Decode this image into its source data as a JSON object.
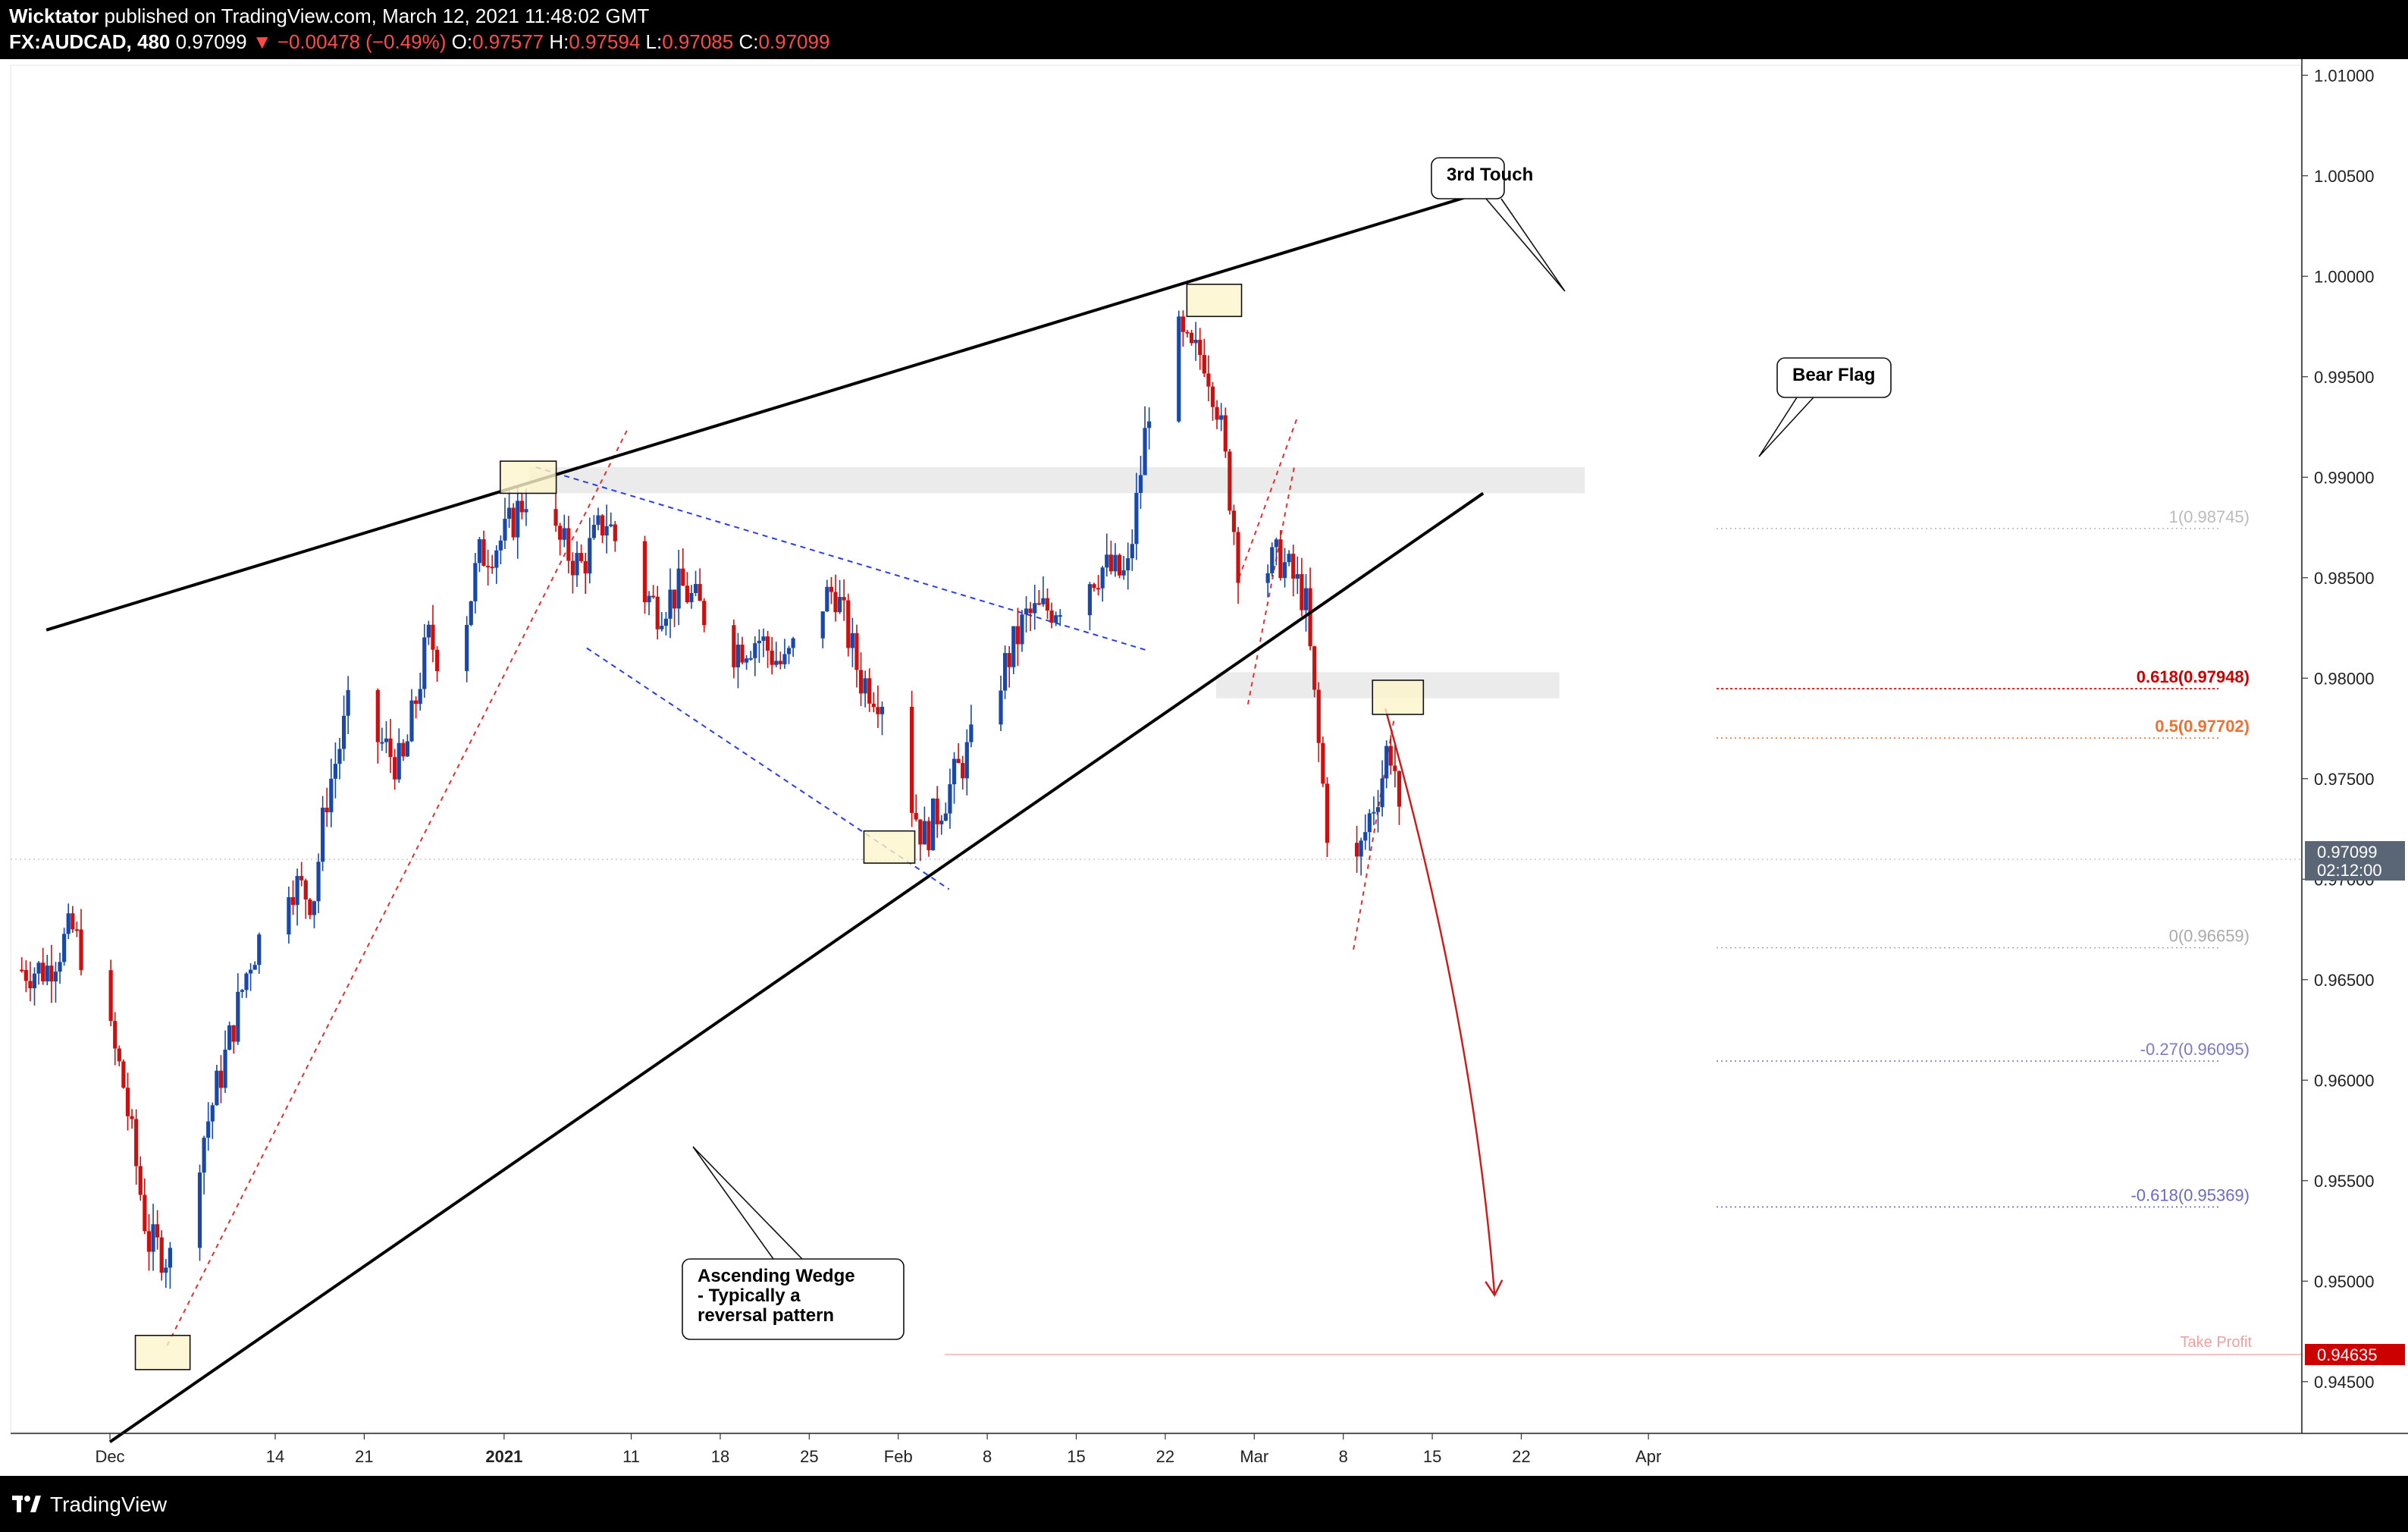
{
  "header": {
    "author": "Wicktator",
    "published": "published on TradingView.com, March 12, 2021 11:48:02 GMT",
    "symbol": "FX:AUDCAD, 480",
    "last": "0.97099",
    "change": "▼ −0.00478 (−0.49%)",
    "o_label": "O:",
    "o_value": "0.97577",
    "h_label": "H:",
    "h_value": "0.97594",
    "l_label": "L:",
    "l_value": "0.97085",
    "c_label": "C:",
    "c_value": "0.97099"
  },
  "footer": {
    "brand": "TradingView"
  },
  "colors": {
    "up": "#1848a8",
    "down": "#cc1010",
    "price_tag": "#cc0000",
    "pane_bg": "#ffffff",
    "frame": "#000000"
  },
  "chart_data": {
    "type": "candlestick",
    "symbol": "FX:AUDCAD",
    "interval": "480",
    "ylim": [
      0.9425,
      1.0105
    ],
    "y_ticks": [
      "0.94500",
      "0.95000",
      "0.95500",
      "0.96000",
      "0.96500",
      "0.97000",
      "0.97500",
      "0.98000",
      "0.98500",
      "0.99000",
      "0.99500",
      "1.00000",
      "1.00500",
      "1.01000"
    ],
    "x_ticks": [
      {
        "label": "Dec",
        "day": 0,
        "bold": false
      },
      {
        "label": "14",
        "day": 13,
        "bold": false
      },
      {
        "label": "21",
        "day": 20,
        "bold": false
      },
      {
        "label": "2021",
        "day": 31,
        "bold": true
      },
      {
        "label": "11",
        "day": 41,
        "bold": false
      },
      {
        "label": "18",
        "day": 48,
        "bold": false
      },
      {
        "label": "25",
        "day": 55,
        "bold": false
      },
      {
        "label": "Feb",
        "day": 62,
        "bold": false
      },
      {
        "label": "8",
        "day": 69,
        "bold": false
      },
      {
        "label": "15",
        "day": 76,
        "bold": false
      },
      {
        "label": "22",
        "day": 83,
        "bold": false
      },
      {
        "label": "Mar",
        "day": 90,
        "bold": false
      },
      {
        "label": "8",
        "day": 97,
        "bold": false
      },
      {
        "label": "15",
        "day": 104,
        "bold": false
      },
      {
        "label": "22",
        "day": 111,
        "bold": false
      },
      {
        "label": "Apr",
        "day": 121,
        "bold": false
      }
    ],
    "anchors": [
      [
        -5,
        0.9655
      ],
      [
        -3,
        0.9675
      ],
      [
        -1,
        0.9645
      ],
      [
        1,
        0.96
      ],
      [
        2,
        0.956
      ],
      [
        3,
        0.952
      ],
      [
        5,
        0.951
      ],
      [
        6,
        0.954
      ],
      [
        9,
        0.961
      ],
      [
        11,
        0.966
      ],
      [
        14,
        0.97
      ],
      [
        16,
        0.969
      ],
      [
        17,
        0.974
      ],
      [
        19,
        0.979
      ],
      [
        21,
        0.977
      ],
      [
        23,
        0.9755
      ],
      [
        25,
        0.982
      ],
      [
        27,
        0.98
      ],
      [
        29,
        0.986
      ],
      [
        31,
        0.987
      ],
      [
        33,
        0.9895
      ],
      [
        35,
        0.987
      ],
      [
        37,
        0.9855
      ],
      [
        39,
        0.988
      ],
      [
        41,
        0.985
      ],
      [
        43,
        0.9835
      ],
      [
        45,
        0.9845
      ],
      [
        47,
        0.983
      ],
      [
        49,
        0.9815
      ],
      [
        51,
        0.982
      ],
      [
        53,
        0.9805
      ],
      [
        55,
        0.983
      ],
      [
        57,
        0.9845
      ],
      [
        59,
        0.98
      ],
      [
        61,
        0.979
      ],
      [
        62,
        0.976
      ],
      [
        63,
        0.974
      ],
      [
        64,
        0.972
      ],
      [
        66,
        0.9745
      ],
      [
        68,
        0.977
      ],
      [
        70,
        0.98
      ],
      [
        72,
        0.983
      ],
      [
        74,
        0.9835
      ],
      [
        76,
        0.9845
      ],
      [
        78,
        0.9855
      ],
      [
        80,
        0.985
      ],
      [
        81,
        0.99
      ],
      [
        82,
        0.995
      ],
      [
        83,
        0.9975
      ],
      [
        84,
        0.997
      ],
      [
        85,
        0.996
      ],
      [
        86,
        0.9962
      ],
      [
        87,
        0.994
      ],
      [
        88,
        0.9895
      ],
      [
        89,
        0.9845
      ],
      [
        90,
        0.982
      ],
      [
        91,
        0.9855
      ],
      [
        92,
        0.986
      ],
      [
        93,
        0.985
      ],
      [
        94,
        0.984
      ],
      [
        95,
        0.977
      ],
      [
        96,
        0.971
      ],
      [
        97,
        0.9685
      ],
      [
        98,
        0.9705
      ],
      [
        99,
        0.973
      ],
      [
        100,
        0.975
      ],
      [
        100.5,
        0.9767
      ],
      [
        101,
        0.976
      ],
      [
        101.6,
        0.97099
      ]
    ],
    "last_price": {
      "value": 0.97099,
      "label": "0.97099",
      "countdown": "02:12:00"
    },
    "take_profit": {
      "value": 0.94635,
      "label": "Take Profit",
      "price": "0.94635"
    },
    "fibonacci": [
      {
        "ratio": "1",
        "value": 0.98745,
        "label": "1(0.98745)",
        "color": "#bbbbbb"
      },
      {
        "ratio": "0.618",
        "value": 0.97948,
        "label": "0.618(0.97948)",
        "color": "#cc0000"
      },
      {
        "ratio": "0.5",
        "value": 0.97702,
        "label": "0.5(0.97702)",
        "color": "#f07030"
      },
      {
        "ratio": "0",
        "value": 0.96659,
        "label": "0(0.96659)",
        "color": "#aaaaaa"
      },
      {
        "ratio": "-0.27",
        "value": 0.96095,
        "label": "-0.27(0.96095)",
        "color": "#7a7ac8"
      },
      {
        "ratio": "-0.618",
        "value": 0.95369,
        "label": "-0.618(0.95369)",
        "color": "#6a6ac0"
      }
    ],
    "annotations": {
      "third_touch": "3rd Touch",
      "bear_flag": "Bear Flag",
      "wedge_line1": "Ascending Wedge",
      "wedge_line2": "- Typically a",
      "wedge_line3": "reversal pattern"
    },
    "trendlines": [
      {
        "name": "wedge-upper",
        "from": [
          -5,
          0.9824
        ],
        "to": [
          107,
          1.004
        ]
      },
      {
        "name": "wedge-lower",
        "from": [
          0,
          0.942
        ],
        "to": [
          108,
          0.9892
        ]
      }
    ],
    "zones": [
      {
        "name": "resistance-zone",
        "x": [
          33,
          116
        ],
        "y": [
          0.9892,
          0.9905
        ]
      },
      {
        "name": "pullback-zone",
        "x": [
          87,
          114
        ],
        "y": [
          0.979,
          0.9803
        ]
      }
    ]
  }
}
